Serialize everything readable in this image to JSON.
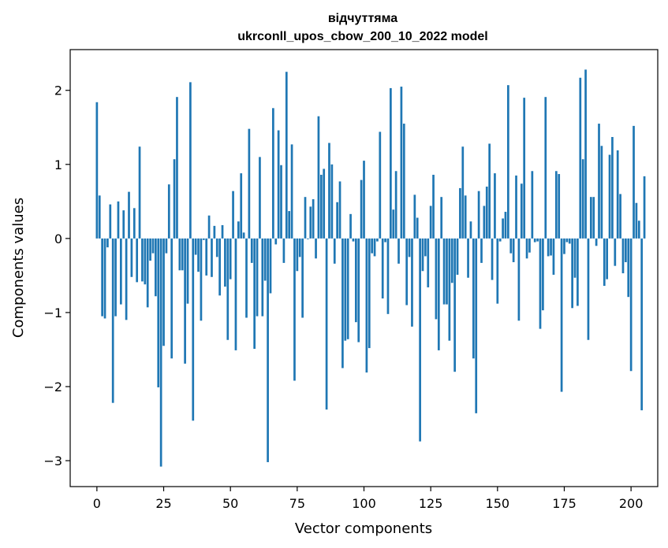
{
  "chart_data": {
    "type": "bar",
    "title_line1": "відчуттяма",
    "title_line2": "ukrconll_upos_cbow_200_10_2022 model",
    "xlabel": "Vector components",
    "ylabel": "Components values",
    "xlim": [
      -10,
      210
    ],
    "ylim": [
      -3.35,
      2.55
    ],
    "xticks": [
      0,
      25,
      50,
      75,
      100,
      125,
      150,
      175,
      200
    ],
    "yticks": [
      -3,
      -2,
      -1,
      0,
      1,
      2
    ],
    "ytick_labels": [
      "−3",
      "−2",
      "−1",
      "0",
      "1",
      "2"
    ],
    "bar_color": "#1f77b4",
    "values": [
      1.84,
      0.58,
      -1.05,
      -1.08,
      -0.12,
      0.46,
      -2.22,
      -1.05,
      0.5,
      -0.89,
      0.38,
      -1.1,
      0.63,
      -0.52,
      0.41,
      -0.59,
      1.24,
      -0.58,
      -0.62,
      -0.93,
      -0.3,
      -0.2,
      -0.78,
      -2.01,
      -3.08,
      -1.45,
      -0.2,
      0.73,
      -1.62,
      1.07,
      1.91,
      -0.43,
      -0.43,
      -1.69,
      -0.88,
      2.11,
      -2.46,
      -0.22,
      -0.45,
      -1.11,
      -0.02,
      -0.5,
      0.31,
      -0.52,
      0.17,
      -0.25,
      -0.77,
      0.18,
      -0.65,
      -1.37,
      -0.55,
      0.64,
      -1.51,
      0.23,
      0.88,
      0.08,
      -1.07,
      1.48,
      -0.33,
      -1.49,
      -1.05,
      1.1,
      -1.05,
      -0.57,
      -3.02,
      -0.74,
      1.76,
      -0.08,
      1.46,
      0.99,
      -0.33,
      2.25,
      0.37,
      1.27,
      -1.92,
      -0.44,
      -0.25,
      -1.07,
      0.56,
      -0.01,
      0.43,
      0.53,
      -0.27,
      1.65,
      0.86,
      0.94,
      -2.31,
      1.29,
      1.0,
      -0.34,
      0.49,
      0.77,
      -1.75,
      -1.38,
      -1.36,
      0.33,
      -0.04,
      -1.13,
      -1.4,
      0.79,
      1.05,
      -1.81,
      -1.48,
      -0.2,
      -0.24,
      -0.04,
      1.44,
      -0.81,
      -0.05,
      -1.02,
      2.03,
      0.39,
      0.91,
      -0.34,
      2.05,
      1.55,
      -0.9,
      -0.25,
      -1.19,
      0.59,
      0.28,
      -2.74,
      -0.44,
      -0.24,
      -0.66,
      0.44,
      0.86,
      -1.09,
      -1.51,
      0.56,
      -0.89,
      -0.89,
      -1.38,
      -0.6,
      -1.8,
      -0.49,
      0.68,
      1.24,
      0.58,
      -0.53,
      0.23,
      -1.62,
      -2.36,
      0.64,
      -0.33,
      0.44,
      0.7,
      1.28,
      -0.56,
      0.88,
      -0.88,
      -0.04,
      0.27,
      0.36,
      2.07,
      -0.2,
      -0.32,
      0.85,
      -1.11,
      0.74,
      1.9,
      -0.27,
      -0.19,
      0.91,
      -0.05,
      -0.04,
      -1.22,
      -0.97,
      1.91,
      -0.24,
      -0.23,
      -0.49,
      0.91,
      0.87,
      -2.07,
      -0.21,
      -0.05,
      -0.07,
      -0.94,
      -0.53,
      -0.91,
      2.17,
      1.07,
      2.28,
      -1.37,
      0.56,
      0.56,
      -0.1,
      1.55,
      1.25,
      -0.64,
      -0.55,
      1.13,
      1.37,
      -0.37,
      1.19,
      0.6,
      -0.47,
      -0.32,
      -0.79,
      -1.79,
      1.52,
      0.48,
      0.24,
      -2.32,
      0.84
    ]
  }
}
